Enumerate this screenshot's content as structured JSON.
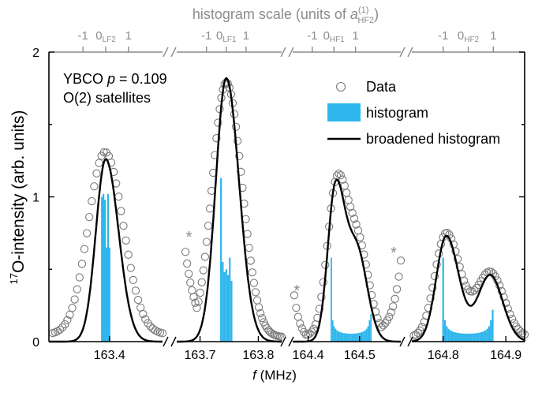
{
  "chart_data": {
    "type": "scatter",
    "annotation_line1": "YBCO",
    "annotation_p": "p",
    "annotation_p_value": " = 0.109",
    "annotation_line2": "O(2) satellites",
    "xlabel_symbol": "f",
    "xlabel_unit": " (MHz)",
    "ylabel_sup": "17",
    "ylabel_text": "O-intensity (arb. units)",
    "top_title_prefix": "histogram scale (units of ",
    "top_title_symbol": "a",
    "top_title_sup": "(1)",
    "top_title_sub": "HF2",
    "top_title_suffix": ")",
    "ylim": [
      0,
      2
    ],
    "y_ticks": [
      "0",
      "1",
      "2"
    ],
    "legend": {
      "position": "right",
      "items": [
        {
          "label": "Data",
          "marker": "circle"
        },
        {
          "label": "histogram",
          "marker": "bar"
        },
        {
          "label": "broadened histogram",
          "marker": "line"
        }
      ]
    },
    "colors": {
      "data": "#7a7a7a",
      "histogram": "#2fb6ec",
      "curve": "#000000",
      "top_axis": "#8c8c8c"
    },
    "markers": {
      "star_label": "*"
    },
    "panels": [
      {
        "id": "LF2",
        "xlim": [
          163.32,
          163.47
        ],
        "x_ticks": [
          163.4
        ],
        "x_tick_labels": [
          "163.4"
        ],
        "top_ticks": [
          "-1",
          "0",
          "1"
        ],
        "top_zero_sub": "LF2",
        "top_center": 163.395,
        "top_unit": 0.03,
        "curve": {
          "center": 163.395,
          "amp": 1.26,
          "sigma_l": 0.013,
          "sigma_r": 0.017
        },
        "data": {
          "center": 163.394,
          "amp": 1.26,
          "sigma_l": 0.022,
          "sigma_r": 0.024,
          "base": 0.05,
          "x_start": 163.325,
          "x_end": 163.47,
          "n": 46
        },
        "histogram": [
          [
            163.39,
            1.0
          ],
          [
            163.392,
            1.02
          ],
          [
            163.394,
            0.98
          ],
          [
            163.396,
            0.65
          ],
          [
            163.398,
            1.02
          ],
          [
            163.4,
            0.65
          ]
        ],
        "stars": []
      },
      {
        "id": "LF1",
        "xlim": [
          163.66,
          163.84
        ],
        "x_ticks": [
          163.7,
          163.8
        ],
        "x_tick_labels": [
          "163.7",
          "163.8"
        ],
        "top_ticks": [
          "-1",
          "0",
          "1"
        ],
        "top_zero_sub": "LF1",
        "top_center": 163.745,
        "top_unit": 0.034,
        "curve": {
          "center": 163.745,
          "amp": 1.82,
          "sigma_l": 0.018,
          "sigma_r": 0.022
        },
        "data": {
          "center": 163.745,
          "amp": 1.76,
          "sigma_l": 0.024,
          "sigma_r": 0.027,
          "base": 0.03,
          "x_start": 163.675,
          "x_end": 163.84,
          "n": 60
        },
        "histogram": [
          [
            163.736,
            1.13
          ],
          [
            163.739,
            0.55
          ],
          [
            163.742,
            0.48
          ],
          [
            163.745,
            0.5
          ],
          [
            163.748,
            0.46
          ],
          [
            163.751,
            0.58
          ],
          [
            163.754,
            0.42
          ]
        ],
        "stars": [
          {
            "x": 163.681,
            "y": 0.73
          }
        ]
      },
      {
        "id": "HF1",
        "xlim": [
          164.37,
          164.58
        ],
        "x_ticks": [
          164.4,
          164.5
        ],
        "x_tick_labels": [
          "164.4",
          "164.5"
        ],
        "top_ticks": [
          "-1",
          "0",
          "1"
        ],
        "top_zero_sub": "HF1",
        "top_center": 164.45,
        "top_unit": 0.042,
        "curve": {
          "p1": 164.453,
          "a1": 1.04,
          "s1l": 0.015,
          "s1r": 0.018,
          "p2": 164.495,
          "a2": 0.62,
          "s2l": 0.02,
          "s2r": 0.02
        },
        "data": {
          "p1": 164.455,
          "a1": 1.0,
          "s1l": 0.018,
          "s1r": 0.02,
          "p2": 164.497,
          "a2": 0.62,
          "s2l": 0.022,
          "s2r": 0.021,
          "base": 0.04,
          "x_start": 164.373,
          "x_end": 164.58,
          "n": 56
        },
        "histogram_range": [
          164.445,
          164.522
        ],
        "stars": [
          {
            "x": 164.378,
            "y": 0.36
          },
          {
            "x": 164.566,
            "y": 0.62
          }
        ]
      },
      {
        "id": "HF2",
        "xlim": [
          164.75,
          164.93
        ],
        "x_ticks": [
          164.8,
          164.9
        ],
        "x_tick_labels": [
          "164.8",
          "164.9"
        ],
        "top_ticks": [
          "-1",
          "0",
          "1"
        ],
        "top_zero_sub": "HF2",
        "top_center": 164.84,
        "top_unit": 0.04,
        "curve": {
          "p1": 164.805,
          "a1": 0.73,
          "s1l": 0.016,
          "s1r": 0.02,
          "p2": 164.875,
          "a2": 0.46,
          "s2l": 0.02,
          "s2r": 0.02
        },
        "data": {
          "p1": 164.805,
          "a1": 0.72,
          "s1l": 0.018,
          "s1r": 0.022,
          "p2": 164.875,
          "a2": 0.45,
          "s2l": 0.022,
          "s2r": 0.022,
          "base": 0.03,
          "x_start": 164.753,
          "x_end": 164.93,
          "n": 54
        },
        "histogram_range": [
          164.8,
          164.879
        ],
        "stars": []
      }
    ]
  }
}
